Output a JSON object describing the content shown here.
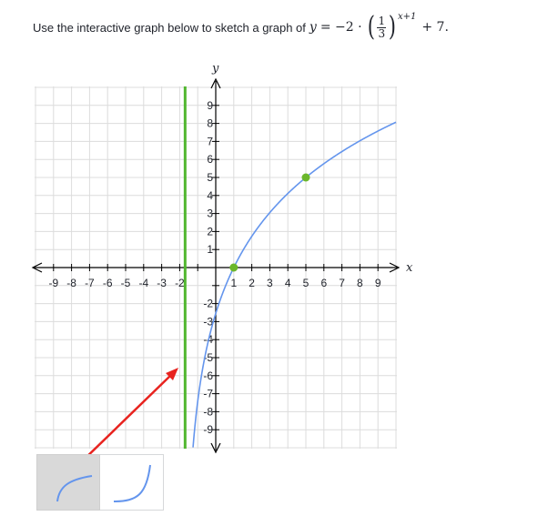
{
  "instruction": {
    "text": "Use the interactive graph below to sketch a graph of",
    "lhs": "y",
    "equals": "= −2 ·",
    "frac_num": "1",
    "frac_den": "3",
    "exponent": "x+1",
    "tail": "+ 7."
  },
  "graph": {
    "x_axis_label": "x",
    "y_axis_label": "y",
    "x_tick_labels": [
      "-9",
      "-8",
      "-7",
      "-6",
      "-5",
      "-4",
      "-3",
      "-2",
      "1",
      "2",
      "3",
      "4",
      "5",
      "6",
      "7",
      "8",
      "9"
    ],
    "y_tick_labels": [
      "9",
      "8",
      "7",
      "6",
      "5",
      "4",
      "3",
      "2",
      "1",
      "-2",
      "-3",
      "-4",
      "-5",
      "-6",
      "-7",
      "-8",
      "-9"
    ],
    "x_range": [
      -10,
      10
    ],
    "y_range": [
      -10,
      10
    ],
    "asymptote": {
      "type": "vertical",
      "x": -1.7,
      "color": "#52b730"
    },
    "curve_color": "#6495ed",
    "points": [
      {
        "x": 1,
        "y": 0,
        "color": "#6bb72b"
      },
      {
        "x": 5,
        "y": 5,
        "color": "#6bb72b"
      }
    ],
    "grid_color": "#dcdcdc",
    "arrow_color": "#e8231f"
  },
  "tools": [
    {
      "name": "logarithmic-tool",
      "icon": "log-curve-icon",
      "selected": true
    },
    {
      "name": "exponential-tool",
      "icon": "exp-curve-icon",
      "selected": false
    }
  ]
}
